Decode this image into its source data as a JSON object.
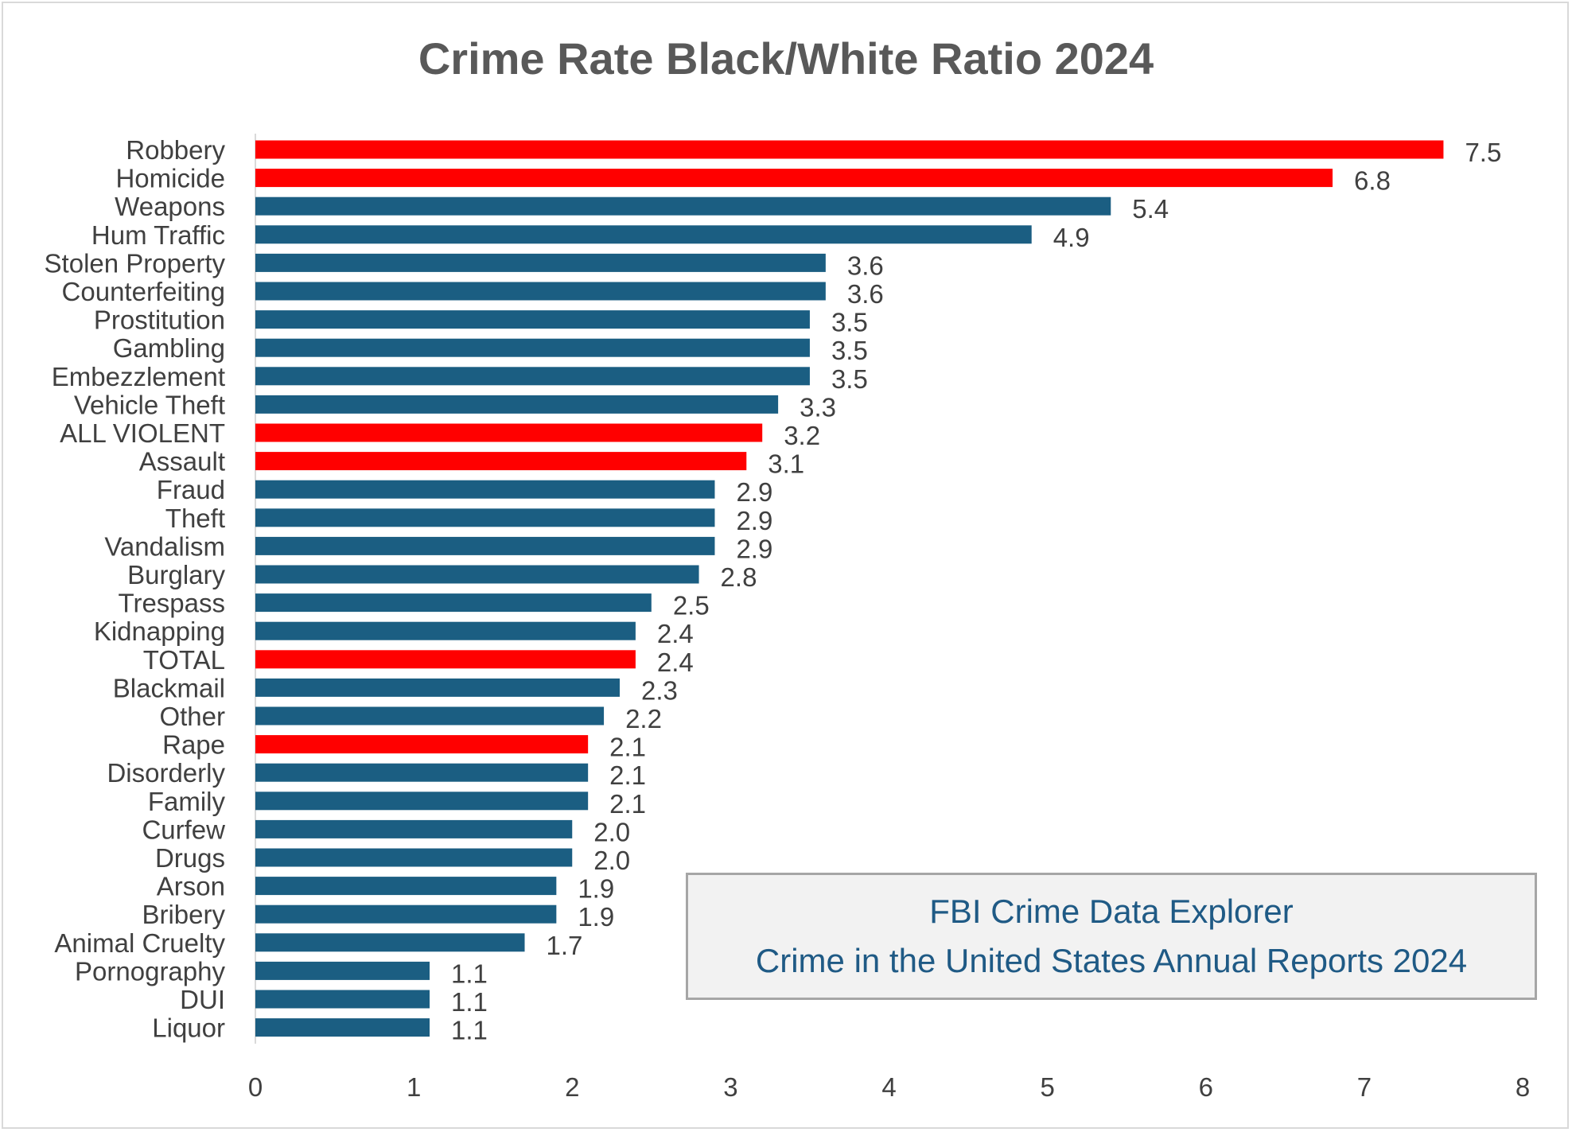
{
  "chart_data": {
    "type": "bar",
    "orientation": "horizontal",
    "title": "Crime Rate Black/White Ratio  2024",
    "xlabel": "",
    "ylabel": "",
    "xlim": [
      0,
      8
    ],
    "x_ticks": [
      0,
      1,
      2,
      3,
      4,
      5,
      6,
      7,
      8
    ],
    "grid": false,
    "colors": {
      "highlight": "#ff0000",
      "default": "#1b5e82"
    },
    "bars": [
      {
        "category": "Robbery",
        "value": 7.5,
        "label": "7.5",
        "highlight": true
      },
      {
        "category": "Homicide",
        "value": 6.8,
        "label": "6.8",
        "highlight": true
      },
      {
        "category": "Weapons",
        "value": 5.4,
        "label": "5.4",
        "highlight": false
      },
      {
        "category": "Hum Traffic",
        "value": 4.9,
        "label": "4.9",
        "highlight": false
      },
      {
        "category": "Stolen Property",
        "value": 3.6,
        "label": "3.6",
        "highlight": false
      },
      {
        "category": "Counterfeiting",
        "value": 3.6,
        "label": "3.6",
        "highlight": false
      },
      {
        "category": "Prostitution",
        "value": 3.5,
        "label": "3.5",
        "highlight": false
      },
      {
        "category": "Gambling",
        "value": 3.5,
        "label": "3.5",
        "highlight": false
      },
      {
        "category": "Embezzlement",
        "value": 3.5,
        "label": "3.5",
        "highlight": false
      },
      {
        "category": "Vehicle Theft",
        "value": 3.3,
        "label": "3.3",
        "highlight": false
      },
      {
        "category": "ALL VIOLENT",
        "value": 3.2,
        "label": "3.2",
        "highlight": true
      },
      {
        "category": "Assault",
        "value": 3.1,
        "label": "3.1",
        "highlight": true
      },
      {
        "category": "Fraud",
        "value": 2.9,
        "label": "2.9",
        "highlight": false
      },
      {
        "category": "Theft",
        "value": 2.9,
        "label": "2.9",
        "highlight": false
      },
      {
        "category": "Vandalism",
        "value": 2.9,
        "label": "2.9",
        "highlight": false
      },
      {
        "category": "Burglary",
        "value": 2.8,
        "label": "2.8",
        "highlight": false
      },
      {
        "category": "Trespass",
        "value": 2.5,
        "label": "2.5",
        "highlight": false
      },
      {
        "category": "Kidnapping",
        "value": 2.4,
        "label": "2.4",
        "highlight": false
      },
      {
        "category": "TOTAL",
        "value": 2.4,
        "label": "2.4",
        "highlight": true
      },
      {
        "category": "Blackmail",
        "value": 2.3,
        "label": "2.3",
        "highlight": false
      },
      {
        "category": "Other",
        "value": 2.2,
        "label": "2.2",
        "highlight": false
      },
      {
        "category": "Rape",
        "value": 2.1,
        "label": "2.1",
        "highlight": true
      },
      {
        "category": "Disorderly",
        "value": 2.1,
        "label": "2.1",
        "highlight": false
      },
      {
        "category": "Family",
        "value": 2.1,
        "label": "2.1",
        "highlight": false
      },
      {
        "category": "Curfew",
        "value": 2.0,
        "label": "2.0",
        "highlight": false
      },
      {
        "category": "Drugs",
        "value": 2.0,
        "label": "2.0",
        "highlight": false
      },
      {
        "category": "Arson",
        "value": 1.9,
        "label": "1.9",
        "highlight": false
      },
      {
        "category": "Bribery",
        "value": 1.9,
        "label": "1.9",
        "highlight": false
      },
      {
        "category": "Animal Cruelty",
        "value": 1.7,
        "label": "1.7",
        "highlight": false
      },
      {
        "category": "Pornography",
        "value": 1.1,
        "label": "1.1",
        "highlight": false
      },
      {
        "category": "DUI",
        "value": 1.1,
        "label": "1.1",
        "highlight": false
      },
      {
        "category": "Liquor",
        "value": 1.1,
        "label": "1.1",
        "highlight": false
      }
    ],
    "annotation": {
      "line1": "FBI Crime Data Explorer",
      "line2": "Crime in the United States Annual Reports 2024"
    }
  }
}
